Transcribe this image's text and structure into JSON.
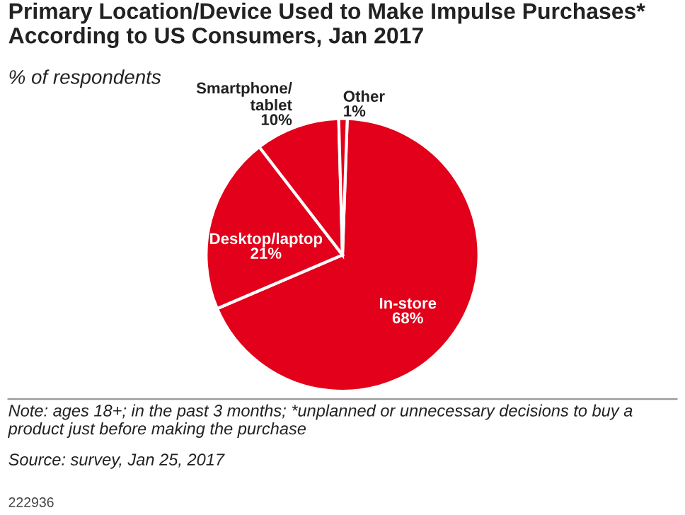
{
  "chart_data": {
    "type": "pie",
    "title": "Primary Location/Device Used to Make Impulse Purchases* According to US Consumers, Jan 2017",
    "subtitle": "% of respondents",
    "categories": [
      "In-store",
      "Desktop/laptop",
      "Smartphone/\ntablet",
      "Other"
    ],
    "values": [
      68,
      21,
      10,
      1
    ],
    "colors": [
      "#e2001a",
      "#e2001a",
      "#e2001a",
      "#e2001a"
    ],
    "value_labels": [
      "68%",
      "21%",
      "10%",
      "1%"
    ],
    "annotations": [
      "Note: ages 18+; in the past 3 months; *unplanned or unnecessary decisions to buy a product just before making the purchase",
      "Source: survey, Jan 25, 2017",
      "222936"
    ]
  }
}
